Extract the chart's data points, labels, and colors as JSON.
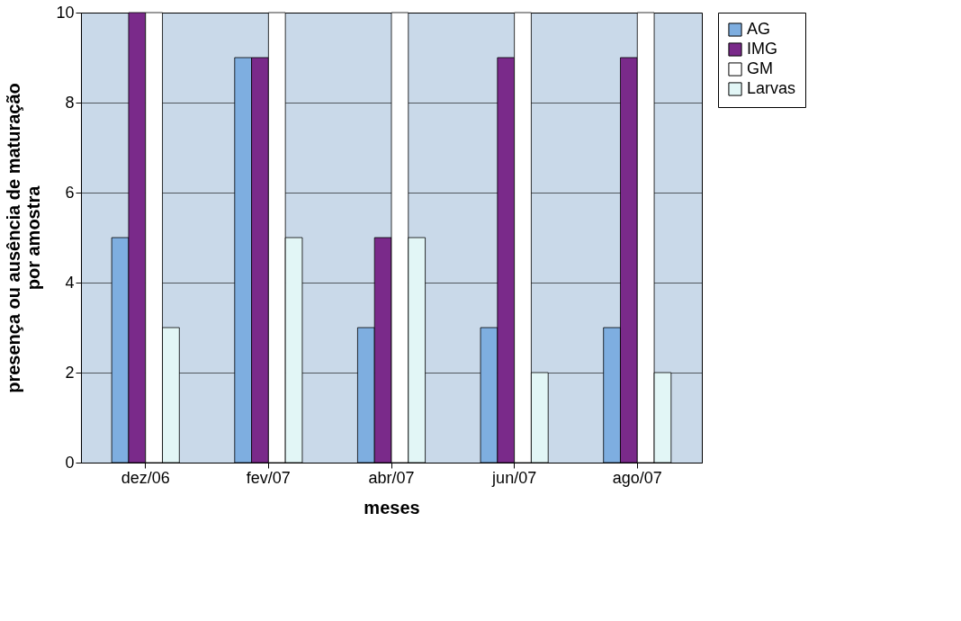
{
  "chart_data": {
    "type": "bar",
    "xlabel": "meses",
    "ylabel": "presença ou ausência de maturação por amostra",
    "categories": [
      "dez/06",
      "fev/07",
      "abr/07",
      "jun/07",
      "ago/07"
    ],
    "series": [
      {
        "name": "AG",
        "color": "#7eaee0",
        "values": [
          5,
          9,
          3,
          3,
          3
        ]
      },
      {
        "name": "IMG",
        "color": "#7a2a8a",
        "values": [
          10,
          9,
          5,
          9,
          9
        ]
      },
      {
        "name": "GM",
        "color": "#ffffff",
        "values": [
          10,
          10,
          10,
          10,
          10
        ]
      },
      {
        "name": "Larvas",
        "color": "#e2f6f6",
        "values": [
          3,
          5,
          5,
          2,
          2
        ]
      }
    ],
    "ylim": [
      0,
      10
    ],
    "yticks": [
      0,
      2,
      4,
      6,
      8,
      10
    ],
    "grid": "y",
    "legend": "right"
  }
}
